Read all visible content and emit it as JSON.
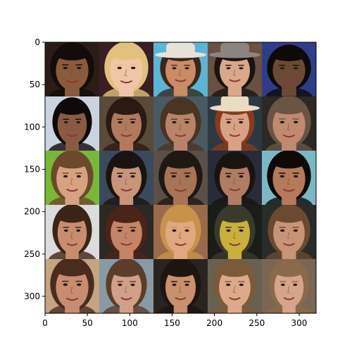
{
  "chart_data": {
    "type": "image-grid",
    "xlim": [
      0,
      320
    ],
    "ylim": [
      320,
      0
    ],
    "xticks": [
      0,
      50,
      100,
      150,
      200,
      250,
      300
    ],
    "yticks": [
      0,
      50,
      100,
      150,
      200,
      250,
      300
    ],
    "xlabel": "",
    "ylabel": "",
    "title": "",
    "grid": false,
    "rows": 5,
    "cols": 5,
    "tiles": [
      {
        "row": 0,
        "col": 0,
        "name": "face-tile-woman-dark-curly-hair",
        "bg": "#2a1d18",
        "hair": "#140c08",
        "skin": "#8a5a3c",
        "face_rx": 0.3,
        "face_ry": 0.37,
        "hat": ""
      },
      {
        "row": 0,
        "col": 1,
        "name": "face-tile-woman-blonde",
        "bg": "#3a1e22",
        "hair": "#e2c27a",
        "skin": "#f0c6a6",
        "face_rx": 0.3,
        "face_ry": 0.38,
        "hat": ""
      },
      {
        "row": 0,
        "col": 2,
        "name": "face-tile-man-cowboy-hat",
        "bg": "#5ab6d6",
        "hair": "#3a2818",
        "skin": "#c98c66",
        "face_rx": 0.28,
        "face_ry": 0.34,
        "hat": "#e6e2d6"
      },
      {
        "row": 0,
        "col": 3,
        "name": "face-tile-man-fedora",
        "bg": "#6a5040",
        "hair": "#1a1410",
        "skin": "#d9a88a",
        "face_rx": 0.28,
        "face_ry": 0.34,
        "hat": "#8a8580"
      },
      {
        "row": 0,
        "col": 4,
        "name": "face-tile-man-glasses",
        "bg": "#2e3c8a",
        "hair": "#0e0a08",
        "skin": "#6a4a34",
        "face_rx": 0.3,
        "face_ry": 0.34,
        "hat": ""
      },
      {
        "row": 1,
        "col": 0,
        "name": "face-tile-woman-black-hair",
        "bg": "#c9d4de",
        "hair": "#0e0a0a",
        "skin": "#8a5a44",
        "face_rx": 0.27,
        "face_ry": 0.36,
        "hat": ""
      },
      {
        "row": 1,
        "col": 1,
        "name": "face-tile-man-brown-hair",
        "bg": "#5a4a3a",
        "hair": "#2a1a12",
        "skin": "#b07a5e",
        "face_rx": 0.28,
        "face_ry": 0.36,
        "hat": ""
      },
      {
        "row": 1,
        "col": 2,
        "name": "face-tile-man-short-hair",
        "bg": "#4a5a62",
        "hair": "#4a3424",
        "skin": "#b88468",
        "face_rx": 0.28,
        "face_ry": 0.36,
        "hat": ""
      },
      {
        "row": 1,
        "col": 3,
        "name": "face-tile-woman-flower-crown",
        "bg": "#2a3a40",
        "hair": "#8a3a1a",
        "skin": "#d8a286",
        "face_rx": 0.27,
        "face_ry": 0.36,
        "hat": "#e8dcc4"
      },
      {
        "row": 1,
        "col": 4,
        "name": "face-tile-man-older",
        "bg": "#2c2824",
        "hair": "#6a5444",
        "skin": "#c08a70",
        "face_rx": 0.3,
        "face_ry": 0.38,
        "hat": ""
      },
      {
        "row": 2,
        "col": 0,
        "name": "face-tile-man-green-background",
        "bg": "#78b838",
        "hair": "#6a4a2a",
        "skin": "#d6a282",
        "face_rx": 0.29,
        "face_ry": 0.38,
        "hat": ""
      },
      {
        "row": 2,
        "col": 1,
        "name": "face-tile-man-dark-hair",
        "bg": "#3a4a5a",
        "hair": "#1a1410",
        "skin": "#c8947a",
        "face_rx": 0.28,
        "face_ry": 0.37,
        "hat": ""
      },
      {
        "row": 2,
        "col": 2,
        "name": "face-tile-man-smiling",
        "bg": "#5a5048",
        "hair": "#201812",
        "skin": "#a87458",
        "face_rx": 0.3,
        "face_ry": 0.38,
        "hat": ""
      },
      {
        "row": 2,
        "col": 3,
        "name": "face-tile-man-dark-background",
        "bg": "#282c3a",
        "hair": "#1a1410",
        "skin": "#b07c62",
        "face_rx": 0.28,
        "face_ry": 0.36,
        "hat": ""
      },
      {
        "row": 2,
        "col": 4,
        "name": "face-tile-man-teal-background",
        "bg": "#7ab8c4",
        "hair": "#0e0a08",
        "skin": "#b47a5a",
        "face_rx": 0.3,
        "face_ry": 0.38,
        "hat": ""
      },
      {
        "row": 3,
        "col": 0,
        "name": "face-tile-woman-long-brown-hair",
        "bg": "#dcdcdc",
        "hair": "#3a2418",
        "skin": "#c88c6e",
        "face_rx": 0.27,
        "face_ry": 0.38,
        "hat": ""
      },
      {
        "row": 3,
        "col": 1,
        "name": "face-tile-woman-dark-background",
        "bg": "#2c2824",
        "hair": "#4a2418",
        "skin": "#c48468",
        "face_rx": 0.29,
        "face_ry": 0.37,
        "hat": ""
      },
      {
        "row": 3,
        "col": 2,
        "name": "face-tile-woman-hands-on-head",
        "bg": "#9a6a4a",
        "hair": "#c8924a",
        "skin": "#e0a880",
        "face_rx": 0.28,
        "face_ry": 0.38,
        "hat": ""
      },
      {
        "row": 3,
        "col": 3,
        "name": "face-tile-man-yellow-light",
        "bg": "#1a1c18",
        "hair": "#3a3a2a",
        "skin": "#c8b03a",
        "face_rx": 0.28,
        "face_ry": 0.38,
        "hat": ""
      },
      {
        "row": 3,
        "col": 4,
        "name": "face-tile-man-beard",
        "bg": "#2a2c2a",
        "hair": "#6a4a30",
        "skin": "#c89478",
        "face_rx": 0.29,
        "face_ry": 0.38,
        "hat": ""
      },
      {
        "row": 4,
        "col": 0,
        "name": "face-tile-woman-smiling",
        "bg": "#c4a482",
        "hair": "#4a2c1e",
        "skin": "#c88c70",
        "face_rx": 0.3,
        "face_ry": 0.4,
        "hat": ""
      },
      {
        "row": 4,
        "col": 1,
        "name": "face-tile-woman-hair-up",
        "bg": "#8a9aa4",
        "hair": "#5a3e2a",
        "skin": "#d0a088",
        "face_rx": 0.28,
        "face_ry": 0.38,
        "hat": ""
      },
      {
        "row": 4,
        "col": 2,
        "name": "face-tile-woman-dark-hair-tan",
        "bg": "#2a2420",
        "hair": "#1e1410",
        "skin": "#c8906e",
        "face_rx": 0.28,
        "face_ry": 0.38,
        "hat": ""
      },
      {
        "row": 4,
        "col": 3,
        "name": "face-tile-boy-bowl-cut",
        "bg": "#6a6050",
        "hair": "#7a5a3a",
        "skin": "#dcaa8a",
        "face_rx": 0.29,
        "face_ry": 0.38,
        "hat": ""
      },
      {
        "row": 4,
        "col": 4,
        "name": "face-tile-woman-profile",
        "bg": "#7a6654",
        "hair": "#8a6a4a",
        "skin": "#d6a48a",
        "face_rx": 0.27,
        "face_ry": 0.38,
        "hat": ""
      }
    ]
  }
}
